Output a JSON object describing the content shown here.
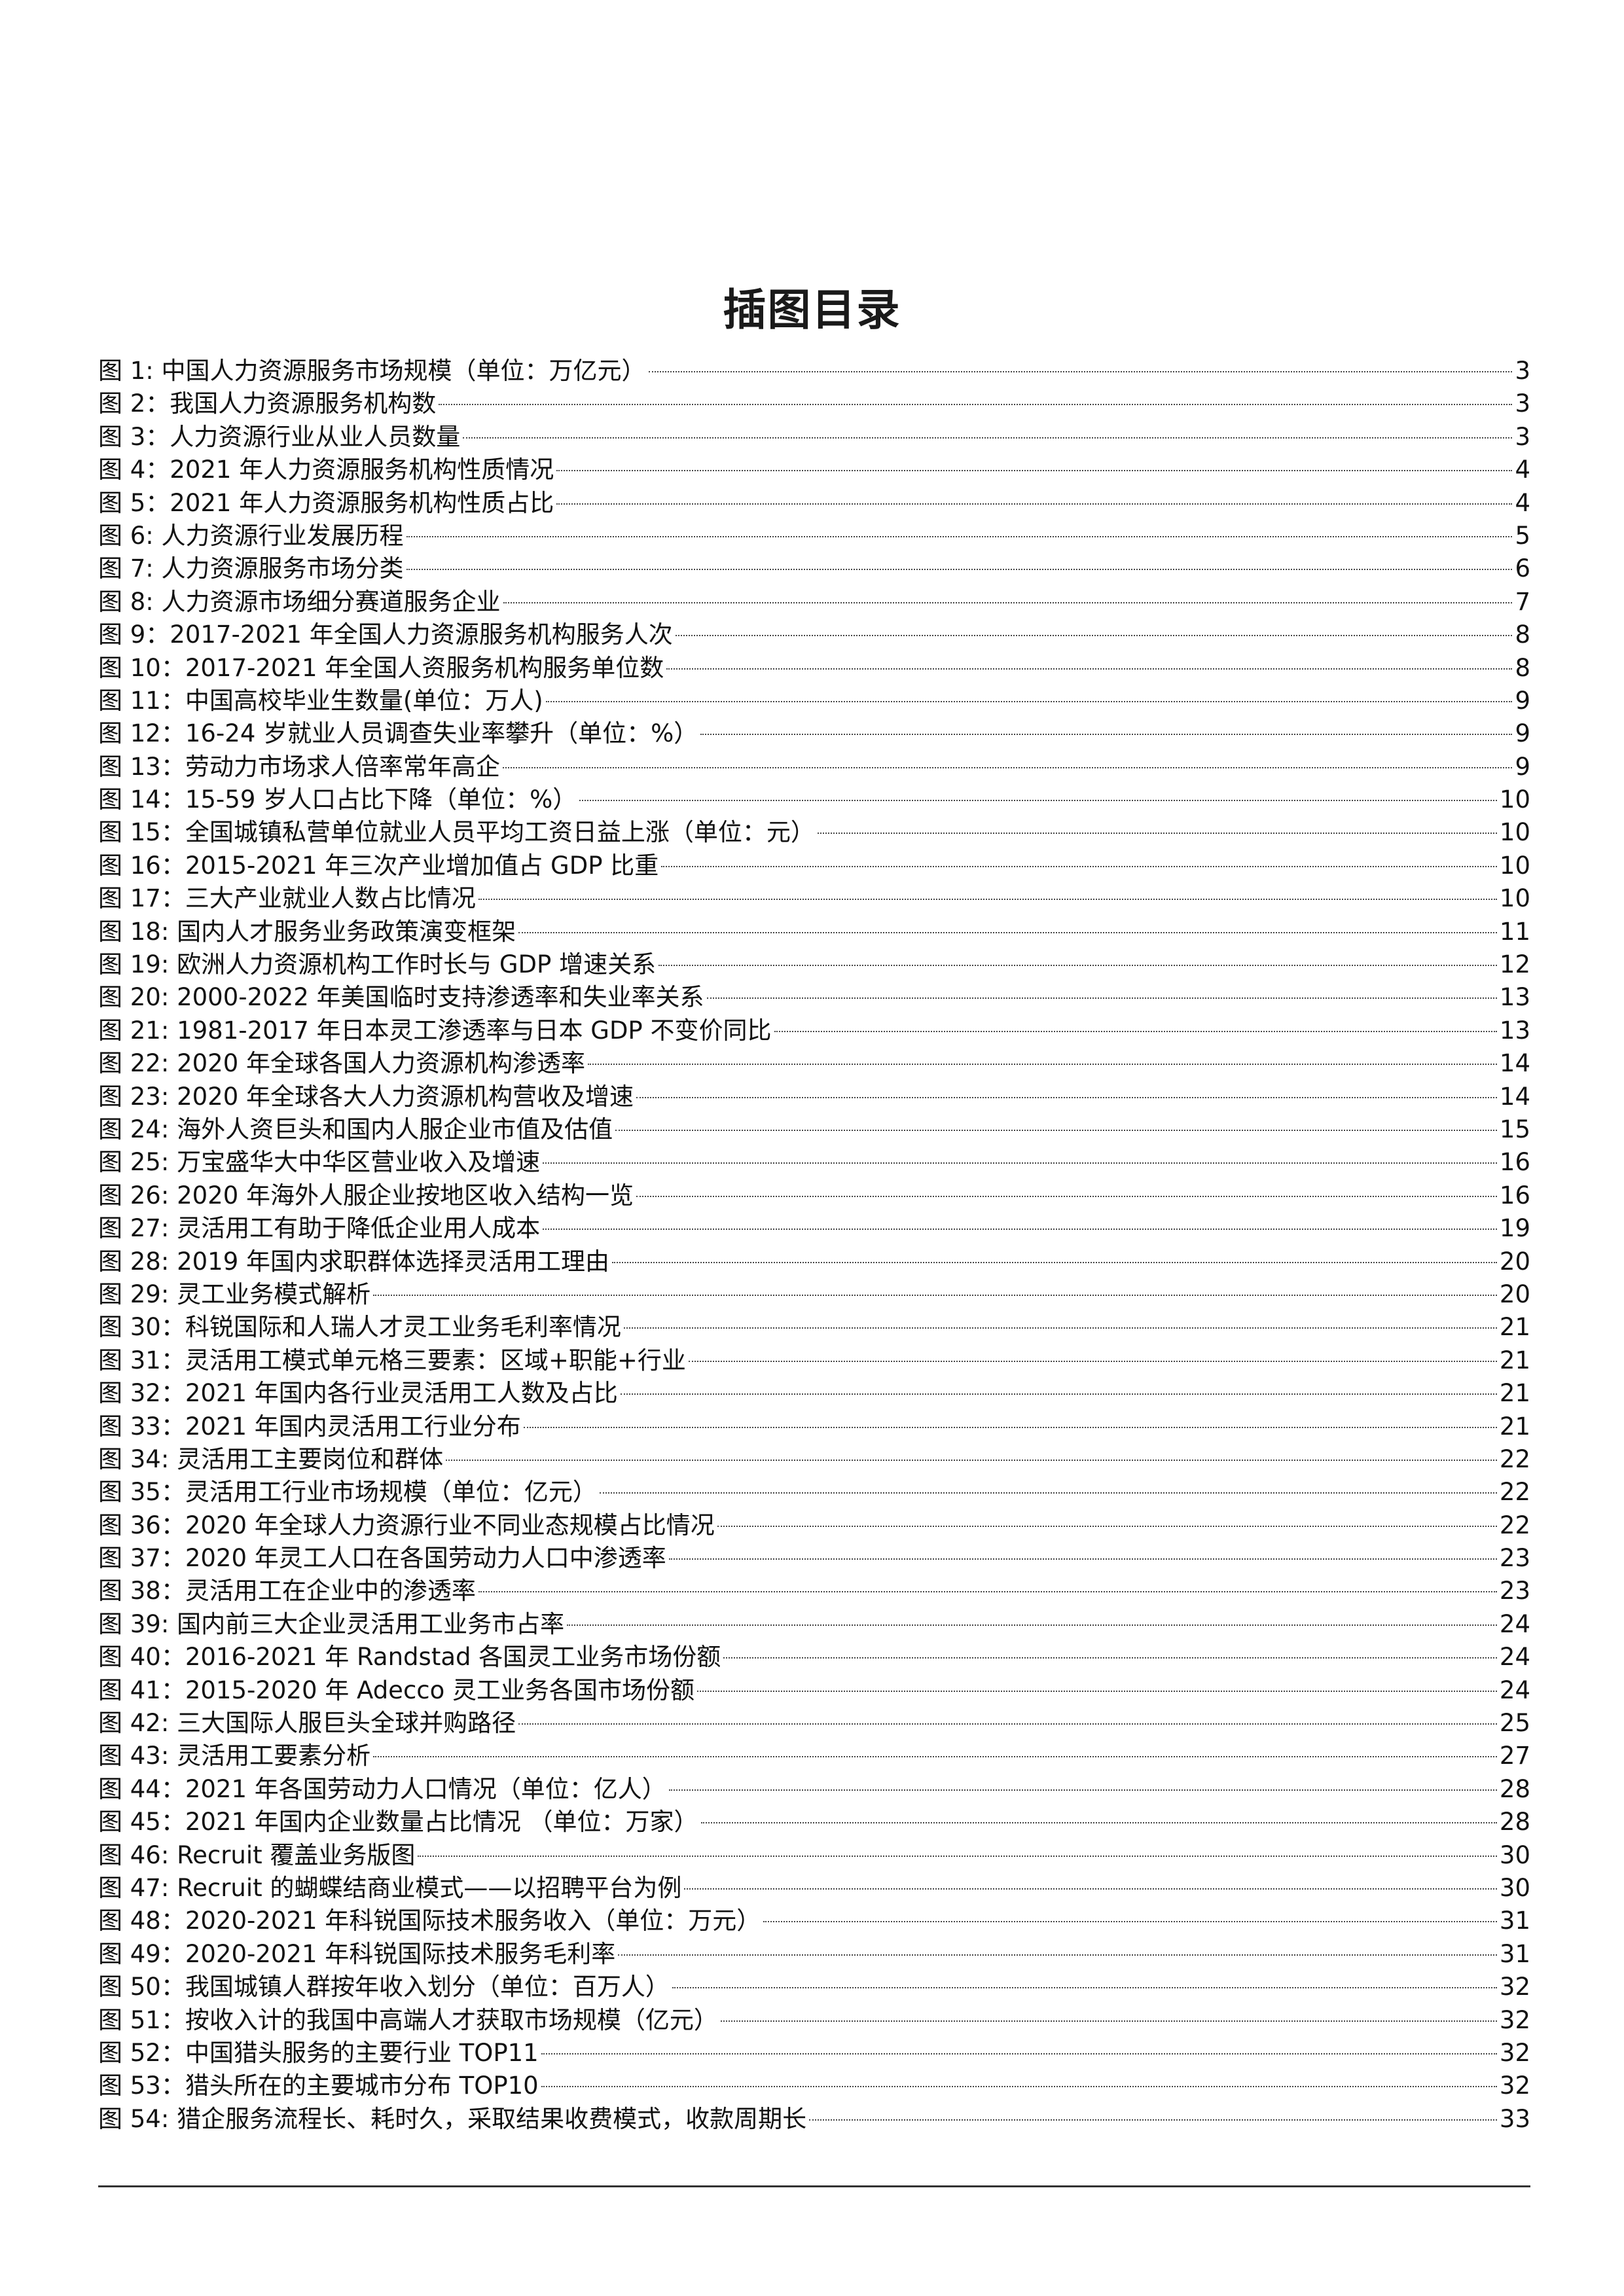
{
  "title": "插图目录",
  "entries": [
    {
      "label": "图 1: 中国人力资源服务市场规模（单位：万亿元）",
      "page": "3"
    },
    {
      "label": "图 2：我国人力资源服务机构数",
      "page": "3"
    },
    {
      "label": "图 3：人力资源行业从业人员数量",
      "page": "3"
    },
    {
      "label": "图 4：2021 年人力资源服务机构性质情况",
      "page": "4"
    },
    {
      "label": "图 5：2021 年人力资源服务机构性质占比",
      "page": "4"
    },
    {
      "label": "图 6: 人力资源行业发展历程",
      "page": "5"
    },
    {
      "label": "图 7: 人力资源服务市场分类",
      "page": "6"
    },
    {
      "label": "图 8: 人力资源市场细分赛道服务企业",
      "page": "7"
    },
    {
      "label": "图 9：2017-2021 年全国人力资源服务机构服务人次",
      "page": "8"
    },
    {
      "label": "图 10：2017-2021 年全国人资服务机构服务单位数",
      "page": "8"
    },
    {
      "label": "图 11：中国高校毕业生数量(单位：万人)",
      "page": "9"
    },
    {
      "label": "图 12：16-24 岁就业人员调查失业率攀升（单位：%）",
      "page": "9"
    },
    {
      "label": "图 13：劳动力市场求人倍率常年高企",
      "page": "9"
    },
    {
      "label": "图 14：15-59 岁人口占比下降（单位：%）",
      "page": "10"
    },
    {
      "label": "图 15：全国城镇私营单位就业人员平均工资日益上涨（单位：元）",
      "page": "10"
    },
    {
      "label": "图 16：2015-2021 年三次产业增加值占 GDP 比重",
      "page": "10"
    },
    {
      "label": "图 17：三大产业就业人数占比情况",
      "page": "10"
    },
    {
      "label": "图 18: 国内人才服务业务政策演变框架",
      "page": "11"
    },
    {
      "label": "图 19: 欧洲人力资源机构工作时长与 GDP 增速关系",
      "page": "12"
    },
    {
      "label": "图 20: 2000-2022 年美国临时支持渗透率和失业率关系",
      "page": "13"
    },
    {
      "label": "图 21: 1981-2017 年日本灵工渗透率与日本 GDP 不变价同比",
      "page": "13"
    },
    {
      "label": "图 22: 2020 年全球各国人力资源机构渗透率",
      "page": "14"
    },
    {
      "label": "图 23: 2020 年全球各大人力资源机构营收及增速",
      "page": "14"
    },
    {
      "label": "图 24: 海外人资巨头和国内人服企业市值及估值",
      "page": "15"
    },
    {
      "label": "图 25: 万宝盛华大中华区营业收入及增速",
      "page": "16"
    },
    {
      "label": "图 26: 2020 年海外人服企业按地区收入结构一览",
      "page": "16"
    },
    {
      "label": "图 27: 灵活用工有助于降低企业用人成本",
      "page": "19"
    },
    {
      "label": "图 28: 2019 年国内求职群体选择灵活用工理由",
      "page": "20"
    },
    {
      "label": "图 29: 灵工业务模式解析",
      "page": "20"
    },
    {
      "label": "图 30：科锐国际和人瑞人才灵工业务毛利率情况",
      "page": "21"
    },
    {
      "label": "图 31：灵活用工模式单元格三要素：区域+职能+行业",
      "page": "21"
    },
    {
      "label": "图 32：2021 年国内各行业灵活用工人数及占比",
      "page": "21"
    },
    {
      "label": "图 33：2021 年国内灵活用工行业分布",
      "page": "21"
    },
    {
      "label": "图 34: 灵活用工主要岗位和群体",
      "page": "22"
    },
    {
      "label": "图 35：灵活用工行业市场规模（单位：亿元）",
      "page": "22"
    },
    {
      "label": "图 36：2020 年全球人力资源行业不同业态规模占比情况",
      "page": "22"
    },
    {
      "label": "图 37：2020 年灵工人口在各国劳动力人口中渗透率",
      "page": "23"
    },
    {
      "label": "图 38：灵活用工在企业中的渗透率",
      "page": "23"
    },
    {
      "label": "图 39: 国内前三大企业灵活用工业务市占率",
      "page": "24"
    },
    {
      "label": "图 40：2016-2021 年 Randstad 各国灵工业务市场份额",
      "page": "24"
    },
    {
      "label": "图 41：2015-2020 年 Adecco 灵工业务各国市场份额",
      "page": "24"
    },
    {
      "label": "图 42: 三大国际人服巨头全球并购路径",
      "page": "25"
    },
    {
      "label": "图 43: 灵活用工要素分析",
      "page": "27"
    },
    {
      "label": "图 44：2021 年各国劳动力人口情况（单位：亿人）",
      "page": "28"
    },
    {
      "label": "图 45：2021 年国内企业数量占比情况 （单位：万家）",
      "page": "28"
    },
    {
      "label": "图 46: Recruit 覆盖业务版图",
      "page": "30"
    },
    {
      "label": "图 47: Recruit 的蝴蝶结商业模式——以招聘平台为例",
      "page": "30"
    },
    {
      "label": "图 48：2020-2021 年科锐国际技术服务收入（单位：万元）",
      "page": "31"
    },
    {
      "label": "图 49：2020-2021 年科锐国际技术服务毛利率",
      "page": "31"
    },
    {
      "label": "图 50：我国城镇人群按年收入划分（单位：百万人）",
      "page": "32"
    },
    {
      "label": "图 51：按收入计的我国中高端人才获取市场规模（亿元）",
      "page": "32"
    },
    {
      "label": "图 52：中国猎头服务的主要行业 TOP11",
      "page": "32"
    },
    {
      "label": "图 53：猎头所在的主要城市分布 TOP10",
      "page": "32"
    },
    {
      "label": "图 54: 猎企服务流程长、耗时久，采取结果收费模式，收款周期长",
      "page": "33"
    }
  ]
}
